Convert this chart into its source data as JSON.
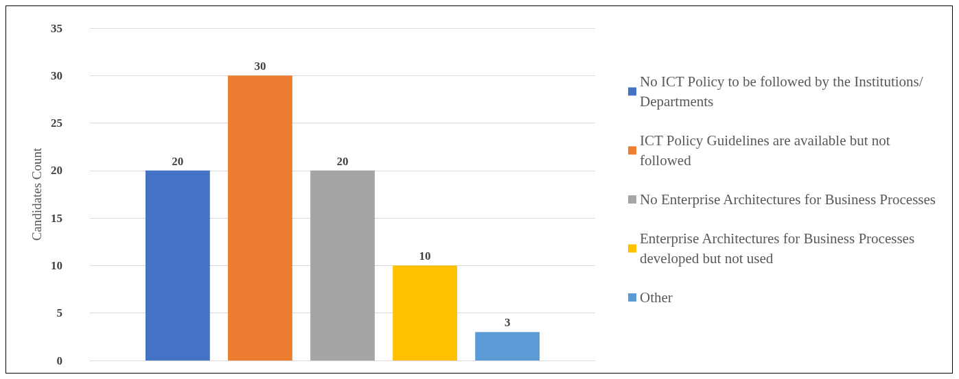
{
  "chart_data": {
    "type": "bar",
    "ylabel": "Candidates Count",
    "categories": [
      null
    ],
    "series": [
      {
        "name": "No ICT Policy to be followed by the Institutions/Departments",
        "color": "#4472c4",
        "values": [
          20
        ]
      },
      {
        "name": "ICT Policy Guidelines are available but not followed",
        "color": "#ed7d31",
        "values": [
          30
        ]
      },
      {
        "name": "No Enterprise Architectures for Business Processes",
        "color": "#a5a5a5",
        "values": [
          20
        ]
      },
      {
        "name": "Enterprise Architectures for Business Processes developed but not used",
        "color": "#ffc000",
        "values": [
          10
        ]
      },
      {
        "name": "Other",
        "color": "#5b9bd5",
        "values": [
          3
        ]
      }
    ],
    "ylim": [
      0,
      35
    ],
    "yticks": [
      0,
      5,
      10,
      15,
      20,
      25,
      30,
      35
    ],
    "grid": "y",
    "legend": "right",
    "data_labels": true
  }
}
